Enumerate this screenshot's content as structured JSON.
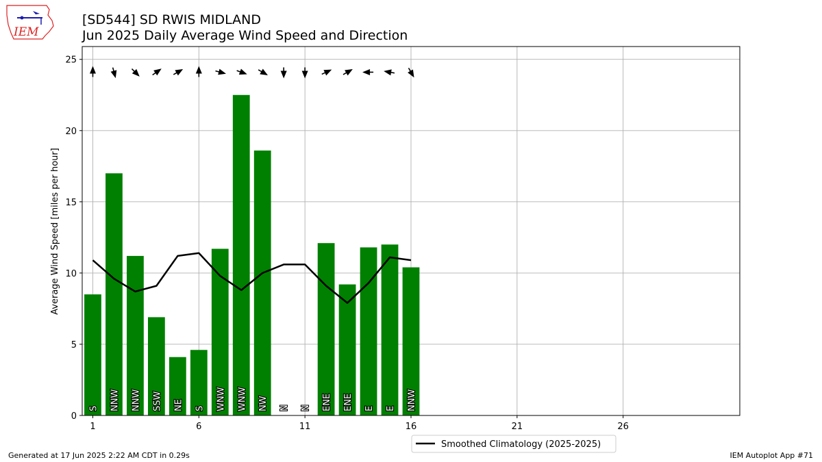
{
  "header": {
    "title_line1": "[SD544] SD RWIS MIDLAND",
    "title_line2": "Jun 2025 Daily Average Wind Speed and Direction"
  },
  "logo": {
    "text": "IEM"
  },
  "footer": {
    "generated": "Generated at 17 Jun 2025 2:22 AM CDT in 0.29s",
    "app": "IEM Autoplot App #71"
  },
  "chart_data": {
    "type": "bar",
    "title": "[SD544] SD RWIS MIDLAND\nJun 2025 Daily Average Wind Speed and Direction",
    "xlabel": "",
    "ylabel": "Average Wind Speed [miles per hour]",
    "xlim": [
      0.5,
      31.5
    ],
    "ylim": [
      0,
      25.9
    ],
    "xticks": [
      1,
      6,
      11,
      16,
      21,
      26
    ],
    "yticks": [
      0,
      5,
      10,
      15,
      20,
      25
    ],
    "grid": true,
    "bar_color": "#008000",
    "days": [
      1,
      2,
      3,
      4,
      5,
      6,
      7,
      8,
      9,
      10,
      11,
      12,
      13,
      14,
      15,
      16
    ],
    "values": [
      8.5,
      17.0,
      11.2,
      6.9,
      4.1,
      4.6,
      11.7,
      22.5,
      18.6,
      0,
      0,
      12.1,
      9.2,
      11.8,
      12.0,
      10.4
    ],
    "directions": [
      "S",
      "NNW",
      "NNW",
      "SSW",
      "NE",
      "S",
      "WNW",
      "WNW",
      "NW",
      "N",
      "N",
      "ENE",
      "ENE",
      "E",
      "E",
      "NNW"
    ],
    "arrow_angles_deg": [
      90,
      -75,
      -45,
      35,
      30,
      90,
      -15,
      -20,
      -30,
      -90,
      -90,
      25,
      30,
      180,
      170,
      -60
    ],
    "climatology": {
      "name": "Smoothed Climatology (2025-2025)",
      "color": "#000000",
      "x": [
        1,
        2,
        3,
        4,
        5,
        6,
        7,
        8,
        9,
        10,
        11,
        12,
        13,
        14,
        15,
        16
      ],
      "values": [
        10.9,
        9.6,
        8.7,
        9.1,
        11.2,
        11.4,
        9.8,
        8.8,
        10.0,
        10.6,
        10.6,
        9.1,
        7.9,
        9.3,
        11.1,
        10.9
      ]
    },
    "legend": "bottom-center, below plot"
  }
}
